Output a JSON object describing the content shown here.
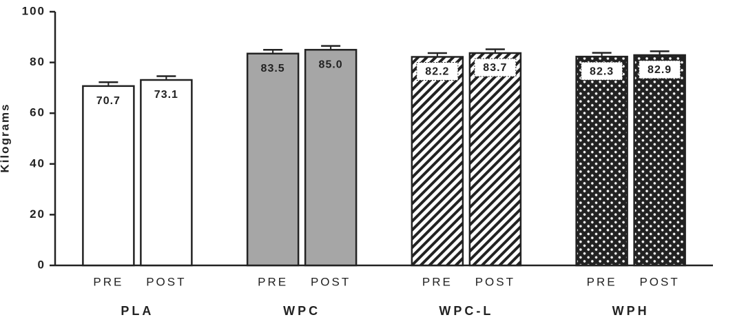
{
  "chart_data": {
    "type": "grouped-bar",
    "y_label": "Kilograms",
    "subcategories": [
      "PRE",
      "POST"
    ],
    "groups": [
      {
        "name": "PLA",
        "fill": "plain",
        "color": "#ffffff",
        "values": [
          70.7,
          73.1
        ],
        "value_labels": [
          "70.7",
          "73.1"
        ],
        "errors": [
          1.5,
          1.5
        ]
      },
      {
        "name": "WPC",
        "fill": "plain",
        "color": "#a6a6a6",
        "values": [
          83.5,
          85.0
        ],
        "value_labels": [
          "83.5",
          "85.0"
        ],
        "errors": [
          1.5,
          1.5
        ]
      },
      {
        "name": "WPC-L",
        "fill": "hatch",
        "color": "#222222",
        "values": [
          82.2,
          83.7
        ],
        "value_labels": [
          "82.2",
          "83.7"
        ],
        "errors": [
          1.5,
          1.5
        ]
      },
      {
        "name": "WPH",
        "fill": "dots",
        "color": "#222222",
        "values": [
          82.3,
          82.9
        ],
        "value_labels": [
          "82.3",
          "82.9"
        ],
        "errors": [
          1.5,
          1.5
        ]
      }
    ],
    "ylim": [
      0,
      100
    ],
    "yticks": [
      0,
      20,
      40,
      60,
      80,
      100
    ]
  }
}
